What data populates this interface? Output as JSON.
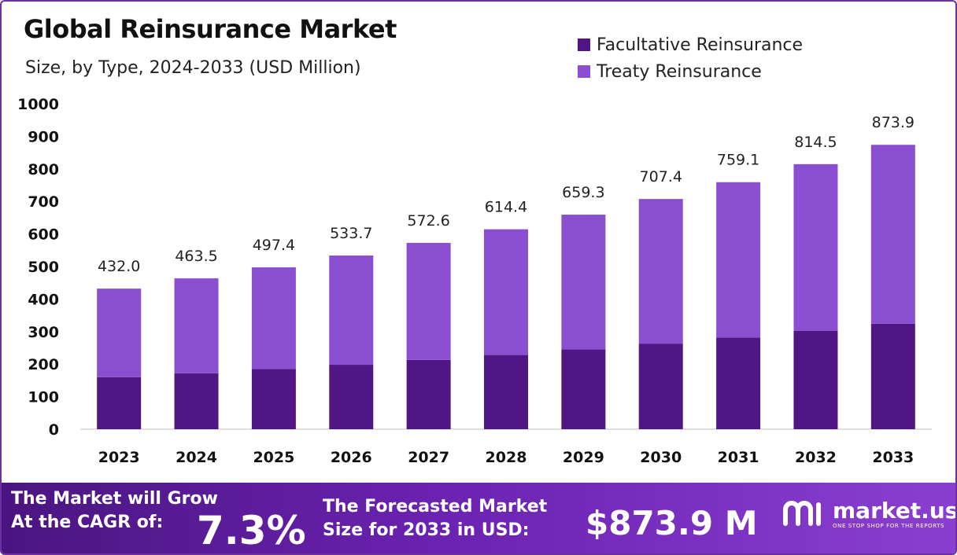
{
  "header": {
    "title": "Global Reinsurance Market",
    "subtitle": "Size, by Type, 2024-2033 (USD Million)"
  },
  "chart_data": {
    "type": "bar",
    "stacked": true,
    "title": "Global Reinsurance Market",
    "subtitle": "Size, by Type, 2024-2033 (USD Million)",
    "categories": [
      "2023",
      "2024",
      "2025",
      "2026",
      "2027",
      "2028",
      "2029",
      "2030",
      "2031",
      "2032",
      "2033"
    ],
    "series": [
      {
        "name": "Facultative Reinsurance",
        "color": "#4f1684",
        "values": [
          160,
          172,
          185,
          198,
          213,
          228,
          245,
          263,
          282,
          302,
          324
        ]
      },
      {
        "name": "Treaty Reinsurance",
        "color": "#8a4fd1",
        "values": [
          272.0,
          291.5,
          312.4,
          335.7,
          359.6,
          386.4,
          414.3,
          444.4,
          477.1,
          512.5,
          549.9
        ]
      }
    ],
    "totals": [
      432.0,
      463.5,
      497.4,
      533.7,
      572.6,
      614.4,
      659.3,
      707.4,
      759.1,
      814.5,
      873.9
    ],
    "total_labels": [
      "432.0",
      "463.5",
      "497.4",
      "533.7",
      "572.6",
      "614.4",
      "659.3",
      "707.4",
      "759.1",
      "814.5",
      "873.9"
    ],
    "yticks": [
      0,
      100,
      200,
      300,
      400,
      500,
      600,
      700,
      800,
      900,
      1000
    ],
    "ylim": [
      0,
      1000
    ],
    "grid": false,
    "legend_position": "top-right"
  },
  "footer": {
    "cagr_label_line1": "The Market will Grow",
    "cagr_label_line2": "At the CAGR of:",
    "cagr_value": "7.3%",
    "size_label_line1": "The Forecasted Market",
    "size_label_line2": "Size for 2033 in USD:",
    "size_value": "$873.9 M",
    "brand_name": "market.us",
    "brand_tagline": "ONE STOP SHOP FOR THE REPORTS"
  }
}
